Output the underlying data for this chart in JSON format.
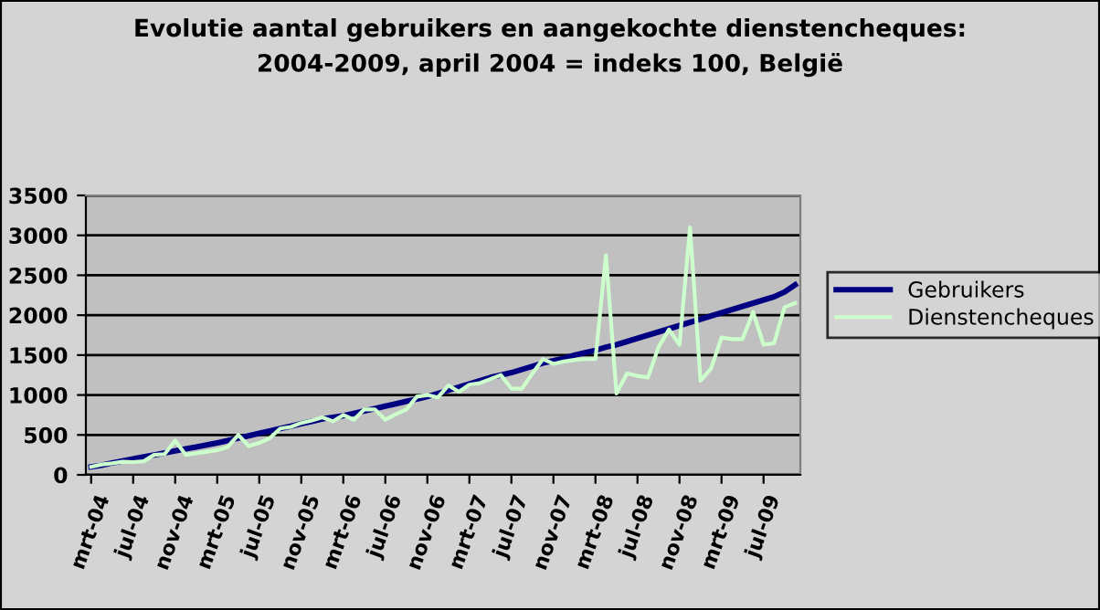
{
  "chart_data": {
    "type": "line",
    "title": "Evolutie aantal gebruikers en aangekochte dienstencheques:\n2004-2009, april 2004 = indeks 100, België",
    "categories": [
      "mrt-04",
      null,
      null,
      null,
      "jul-04",
      null,
      null,
      null,
      "nov-04",
      null,
      null,
      null,
      "mrt-05",
      null,
      null,
      null,
      "jul-05",
      null,
      null,
      null,
      "nov-05",
      null,
      null,
      null,
      "mrt-06",
      null,
      null,
      null,
      "jul-06",
      null,
      null,
      null,
      "nov-06",
      null,
      null,
      null,
      "mrt-07",
      null,
      null,
      null,
      "jul-07",
      null,
      null,
      null,
      "nov-07",
      null,
      null,
      null,
      "mrt-08",
      null,
      null,
      null,
      "jul-08",
      null,
      null,
      null,
      "nov-08",
      null,
      null,
      null,
      "mrt-09",
      null,
      null,
      null,
      "jul-09",
      null,
      null,
      null
    ],
    "series": [
      {
        "name": "Gebruikers",
        "color": "#000080",
        "values": [
          100,
          120,
          150,
          175,
          200,
          225,
          250,
          275,
          300,
          325,
          350,
          375,
          400,
          430,
          460,
          490,
          520,
          550,
          580,
          610,
          640,
          670,
          700,
          720,
          740,
          770,
          800,
          830,
          860,
          890,
          920,
          950,
          980,
          1020,
          1060,
          1100,
          1140,
          1180,
          1220,
          1250,
          1280,
          1320,
          1360,
          1400,
          1430,
          1460,
          1500,
          1530,
          1560,
          1600,
          1630,
          1670,
          1710,
          1750,
          1790,
          1830,
          1870,
          1910,
          1950,
          1990,
          2030,
          2070,
          2110,
          2150,
          2190,
          2230,
          2290,
          2380
        ]
      },
      {
        "name": "Dienstencheques",
        "color": "#ccffcc",
        "values": [
          100,
          130,
          145,
          165,
          160,
          170,
          250,
          260,
          430,
          250,
          270,
          290,
          310,
          350,
          500,
          360,
          400,
          460,
          580,
          600,
          650,
          680,
          720,
          670,
          750,
          690,
          820,
          820,
          690,
          760,
          820,
          980,
          1000,
          970,
          1120,
          1040,
          1130,
          1150,
          1200,
          1250,
          1080,
          1080,
          1270,
          1450,
          1390,
          1420,
          1440,
          1450,
          1450,
          2750,
          1020,
          1270,
          1240,
          1220,
          1600,
          1820,
          1630,
          3100,
          1180,
          1330,
          1720,
          1700,
          1700,
          2040,
          1630,
          1650,
          2100,
          2150
        ]
      }
    ],
    "ylim": [
      0,
      3500
    ],
    "yticks": [
      0,
      500,
      1000,
      1500,
      2000,
      2500,
      3000,
      3500
    ],
    "grid": "y",
    "legend": "right",
    "marker": "none",
    "line_style": "solid"
  }
}
